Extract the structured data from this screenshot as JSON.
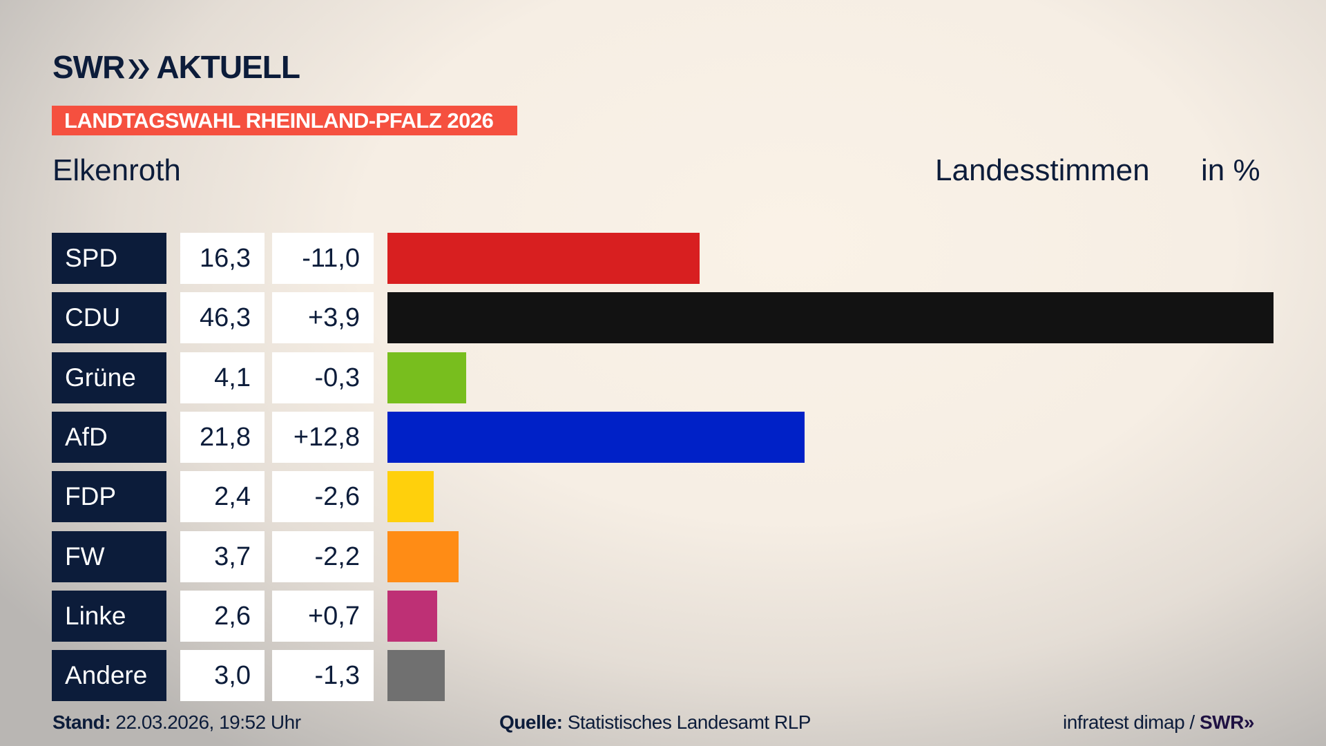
{
  "header": {
    "logo_text": "SWR",
    "logo_suffix": "AKTUELL",
    "banner": "LANDTAGSWAHL RHEINLAND-PFALZ 2026",
    "place": "Elkenroth",
    "measure": "Landesstimmen",
    "unit": "in %"
  },
  "chart_data": {
    "type": "bar",
    "orientation": "horizontal",
    "categories": [
      "SPD",
      "CDU",
      "Grüne",
      "AfD",
      "FDP",
      "FW",
      "Linke",
      "Andere"
    ],
    "values": [
      "16,3",
      "46,3",
      "4,1",
      "21,8",
      "2,4",
      "3,7",
      "2,6",
      "3,0"
    ],
    "numeric_values": [
      16.3,
      46.3,
      4.1,
      21.8,
      2.4,
      3.7,
      2.6,
      3.0
    ],
    "changes": [
      "-11,0",
      "+3,9",
      "-0,3",
      "+12,8",
      "-2,6",
      "-2,2",
      "+0,7",
      "-1,3"
    ],
    "colors": [
      "#d81f20",
      "#121212",
      "#78be1e",
      "#0021c7",
      "#ffd00c",
      "#ff8c15",
      "#be3075",
      "#707070"
    ],
    "xlim": [
      0,
      46.3
    ]
  },
  "footer": {
    "stand_label": "Stand:",
    "stand_value": "22.03.2026, 19:52 Uhr",
    "source_label": "Quelle:",
    "source_value": "Statistisches Landesamt RLP",
    "credit": "infratest dimap /",
    "credit_logo": "SWR"
  }
}
